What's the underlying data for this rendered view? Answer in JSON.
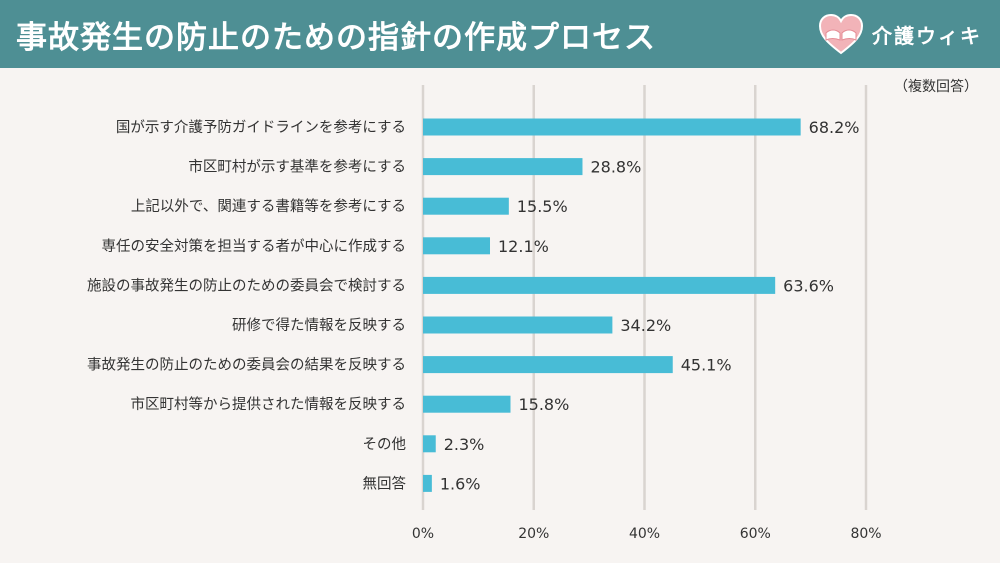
{
  "header": {
    "title": "事故発生の防止のための指針の作成プロセス",
    "brand_name": "介護ウィキ",
    "brand_icon": "heart-hands-icon"
  },
  "note": "（複数回答）",
  "colors": {
    "header": "#4e8f94",
    "bar": "#48bcd6",
    "grid": "#d9d4d0",
    "background": "#f7f4f2"
  },
  "chart_data": {
    "type": "bar",
    "orientation": "horizontal",
    "categories": [
      "国が示す介護予防ガイドラインを参考にする",
      "市区町村が示す基準を参考にする",
      "上記以外で、関連する書籍等を参考にする",
      "専任の安全対策を担当する者が中心に作成する",
      "施設の事故発生の防止のための委員会で検討する",
      "研修で得た情報を反映する",
      "事故発生の防止のための委員会の結果を反映する",
      "市区町村等から提供された情報を反映する",
      "その他",
      "無回答"
    ],
    "values": [
      68.2,
      28.8,
      15.5,
      12.1,
      63.6,
      34.2,
      45.1,
      15.8,
      2.3,
      1.6
    ],
    "value_labels": [
      "68.2%",
      "28.8%",
      "15.5%",
      "12.1%",
      "63.6%",
      "34.2%",
      "45.1%",
      "15.8%",
      "2.3%",
      "1.6%"
    ],
    "xlim": [
      0,
      80
    ],
    "xticks": [
      0,
      20,
      40,
      60,
      80
    ],
    "xtick_labels": [
      "0%",
      "20%",
      "40%",
      "60%",
      "80%"
    ],
    "grid": true,
    "title": "",
    "xlabel": "",
    "ylabel": ""
  }
}
